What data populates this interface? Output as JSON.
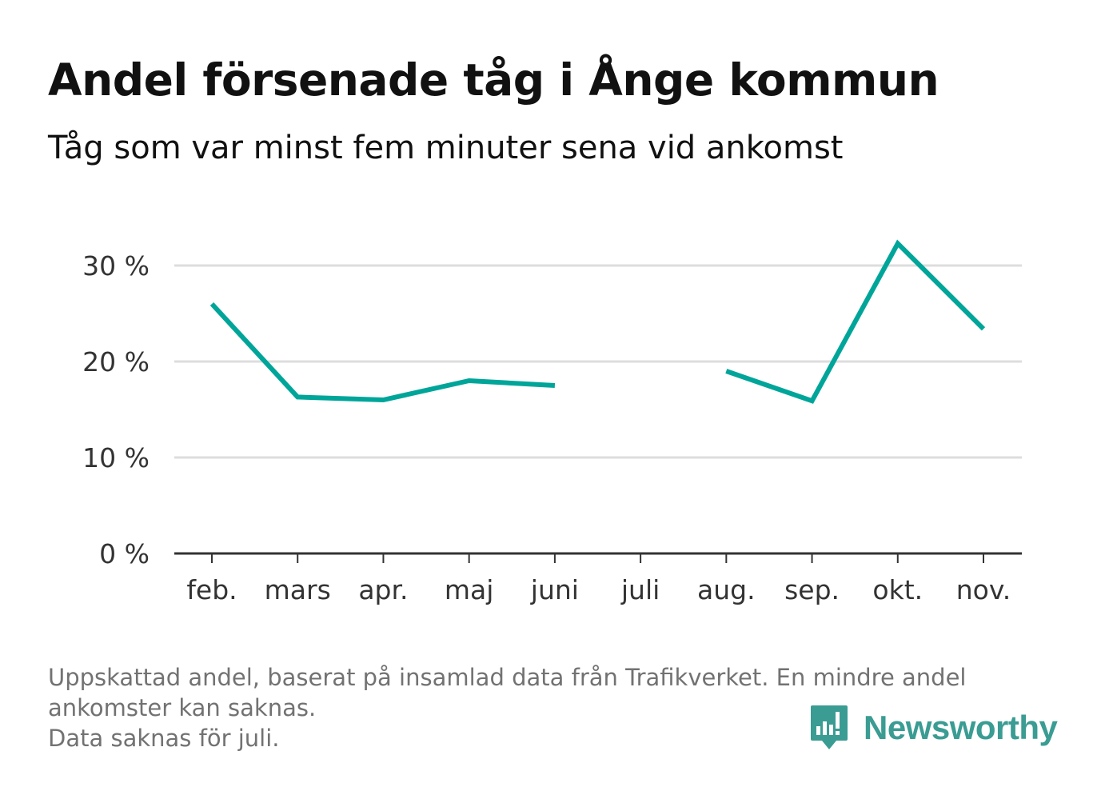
{
  "header": {
    "title": "Andel försenade tåg i Ånge kommun",
    "subtitle": "Tåg som var minst fem minuter sena vid ankomst"
  },
  "chart_data": {
    "type": "line",
    "categories": [
      "feb.",
      "mars",
      "apr.",
      "maj",
      "juni",
      "juli",
      "aug.",
      "sep.",
      "okt.",
      "nov."
    ],
    "series": [
      {
        "values": [
          26.0,
          16.3,
          16.0,
          18.0,
          17.5,
          null,
          19.0,
          15.9,
          32.3,
          23.4
        ]
      }
    ],
    "y_ticks": [
      0,
      10,
      20,
      30
    ],
    "y_tick_labels": [
      "0 %",
      "10 %",
      "20 %",
      "30 %"
    ],
    "ylim": [
      0,
      35
    ],
    "grid": true,
    "line_color": "#00a59a",
    "grid_color": "#dddddd",
    "axis_color": "#333333"
  },
  "footer": {
    "notes": [
      "Uppskattad andel, baserat på insamlad data från Trafikverket. En mindre andel",
      "ankomster kan saknas.",
      "Data saknas för juli."
    ],
    "brand": {
      "name": "Newsworthy",
      "icon": "newsworthy-logo-icon",
      "color": "#3a9c93"
    }
  }
}
